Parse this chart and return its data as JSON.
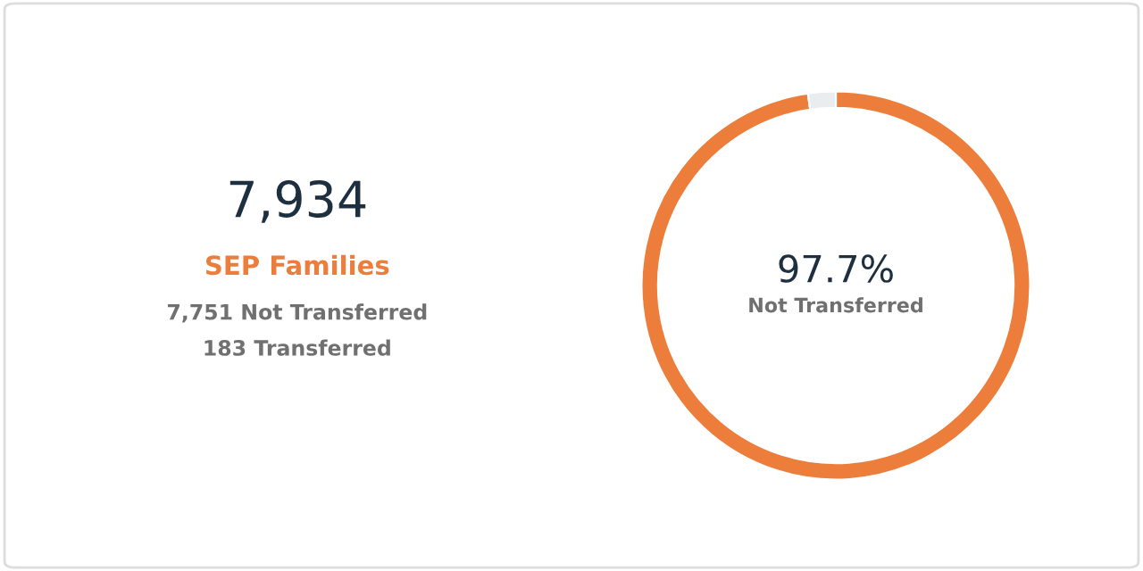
{
  "chart_data": [
    {
      "type": "other",
      "title": "7,934",
      "subtitle": "SEP Families",
      "annotations": [
        "7,751 Not Transferred",
        "183 Transferred"
      ]
    },
    {
      "type": "donut",
      "categories": [
        null,
        null
      ],
      "values": [
        97.7,
        2.3
      ],
      "colors": [
        "#ed7d3a",
        "#e9edf0"
      ],
      "annotations": [
        "97.7%",
        "Not Transferred"
      ]
    }
  ]
}
